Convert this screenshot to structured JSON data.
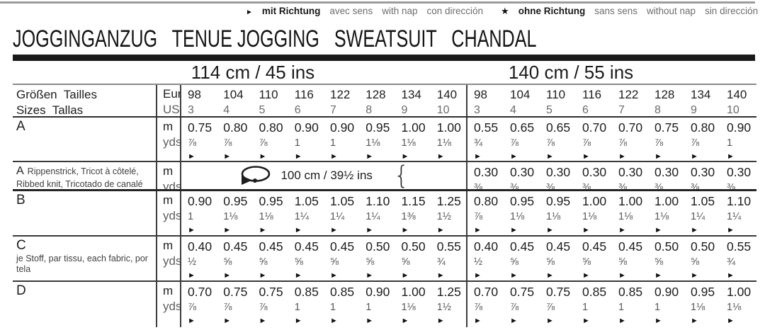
{
  "legend": {
    "nap": {
      "marker": "►",
      "name": "mit Richtung",
      "alts": [
        "avec sens",
        "with nap",
        "con dirección"
      ]
    },
    "no_nap": {
      "marker": "★",
      "name": "ohne Richtung",
      "alts": [
        "sans sens",
        "without nap",
        "sin dirección"
      ]
    }
  },
  "title": "JOGGINGANZUG   TENUE JOGGING   SWEATSUIT   CHANDAL",
  "table": {
    "group_headers": [
      "114 cm / 45 ins",
      "140 cm / 55 ins"
    ],
    "size_row": {
      "label_line1": "Größen  Tailles",
      "label_line2": "Sizes  Tallas",
      "unit_line1": "Eur",
      "unit_line2": "US",
      "eur": [
        "98",
        "104",
        "110",
        "116",
        "122",
        "128",
        "134",
        "140"
      ],
      "us": [
        "3",
        "4",
        "5",
        "6",
        "7",
        "8",
        "9",
        "10"
      ]
    },
    "unit_top": "m",
    "unit_bottom": "yds",
    "arrow": "►",
    "rows": [
      {
        "letter": "A",
        "groups": [
          {
            "m": [
              "0.75",
              "0.80",
              "0.80",
              "0.90",
              "0.90",
              "0.95",
              "1.00",
              "1.00"
            ],
            "yds": [
              "⅞",
              "⅞",
              "⅞",
              "1",
              "1",
              "1⅛",
              "1⅛",
              "1⅛"
            ],
            "arrows": true
          },
          {
            "m": [
              "0.55",
              "0.65",
              "0.65",
              "0.70",
              "0.70",
              "0.75",
              "0.80",
              "0.90"
            ],
            "yds": [
              "¾",
              "⅞",
              "⅞",
              "⅞",
              "⅞",
              "⅞",
              "⅞",
              "1"
            ],
            "arrows": true
          }
        ]
      },
      {
        "letter": "A",
        "sub_inline": "Rippenstrick, Tricot à côtelé,",
        "sub_line2": "Ribbed knit, Tricotado de canalé",
        "note": {
          "icon": "loop-arrow-icon",
          "text": "100 cm / 39½ ins",
          "brace": "{"
        },
        "groups": [
          null,
          {
            "m": [
              "0.30",
              "0.30",
              "0.30",
              "0.30",
              "0.30",
              "0.30",
              "0.30",
              "0.30"
            ],
            "yds": [
              "⅜",
              "⅜",
              "⅜",
              "⅜",
              "⅜",
              "⅜",
              "⅜",
              "⅜"
            ],
            "arrows": false
          }
        ]
      },
      {
        "letter": "B",
        "groups": [
          {
            "m": [
              "0.90",
              "0.95",
              "0.95",
              "1.05",
              "1.05",
              "1.10",
              "1.15",
              "1.25"
            ],
            "yds": [
              "1",
              "1⅛",
              "1⅛",
              "1¼",
              "1¼",
              "1¼",
              "1⅜",
              "1½"
            ],
            "arrows": true
          },
          {
            "m": [
              "0.80",
              "0.95",
              "0.95",
              "1.00",
              "1.00",
              "1.00",
              "1.05",
              "1.10"
            ],
            "yds": [
              "⅞",
              "1⅛",
              "1⅛",
              "1⅛",
              "1⅛",
              "1⅛",
              "1¼",
              "1¼"
            ],
            "arrows": true
          }
        ]
      },
      {
        "letter": "C",
        "sub_line2": "je Stoff, par tissu, each fabric, por tela",
        "groups": [
          {
            "m": [
              "0.40",
              "0.45",
              "0.45",
              "0.45",
              "0.45",
              "0.50",
              "0.50",
              "0.55"
            ],
            "yds": [
              "½",
              "⅝",
              "⅝",
              "⅝",
              "⅝",
              "⅝",
              "⅝",
              "¾"
            ],
            "arrows": true
          },
          {
            "m": [
              "0.40",
              "0.45",
              "0.45",
              "0.45",
              "0.45",
              "0.50",
              "0.50",
              "0.55"
            ],
            "yds": [
              "½",
              "⅝",
              "⅝",
              "⅝",
              "⅝",
              "⅝",
              "⅝",
              "¾"
            ],
            "arrows": true
          }
        ]
      },
      {
        "letter": "D",
        "groups": [
          {
            "m": [
              "0.70",
              "0.75",
              "0.75",
              "0.85",
              "0.85",
              "0.90",
              "1.00",
              "1.25"
            ],
            "yds": [
              "⅞",
              "⅞",
              "⅞",
              "1",
              "1",
              "1",
              "1⅛",
              "1½"
            ],
            "arrows": true
          },
          {
            "m": [
              "0.70",
              "0.75",
              "0.75",
              "0.85",
              "0.85",
              "0.90",
              "0.95",
              "1.00"
            ],
            "yds": [
              "⅞",
              "⅞",
              "⅞",
              "1",
              "1",
              "1",
              "1⅛",
              "1⅛"
            ],
            "arrows": true
          }
        ]
      }
    ]
  },
  "colors": {
    "text": "#1d1d1d",
    "muted": "#6e6e6e",
    "line": "#3d3d3d",
    "bar": "#1a1a1a"
  }
}
